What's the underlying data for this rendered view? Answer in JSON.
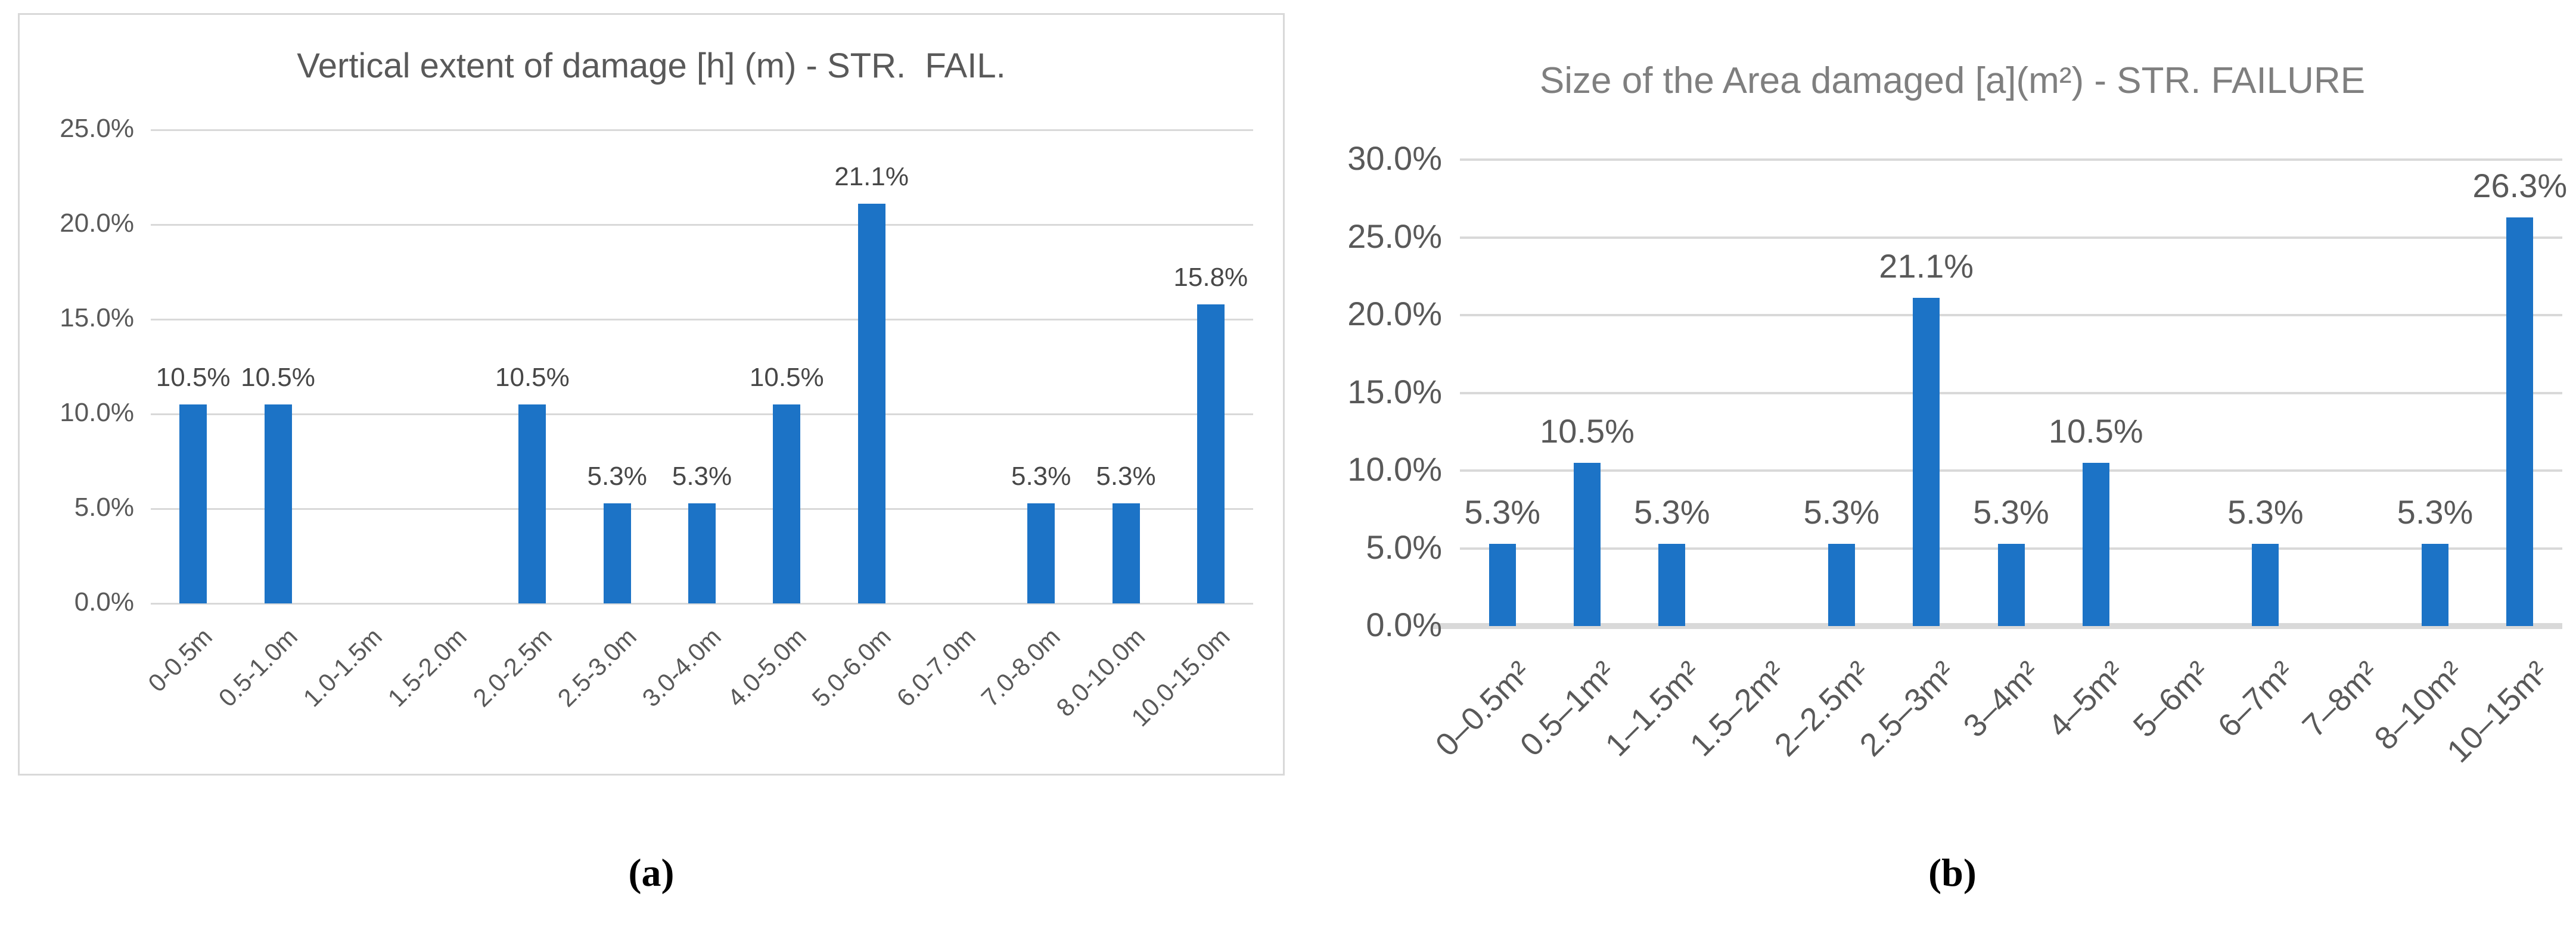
{
  "figure": {
    "captions": {
      "a": "(a)",
      "b": "(b)"
    }
  },
  "chart_data": [
    {
      "id": "chart-a",
      "type": "bar",
      "title": "Vertical extent of damage [h] (m) - STR.  FAIL.",
      "categories": [
        "0-0.5m",
        "0.5-1.0m",
        "1.0-1.5m",
        "1.5-2.0m",
        "2.0-2.5m",
        "2.5-3.0m",
        "3.0-4.0m",
        "4.0-5.0m",
        "5.0-6.0m",
        "6.0-7.0m",
        "7.0-8.0m",
        "8.0-10.0m",
        "10.0-15.0m"
      ],
      "values": [
        10.5,
        10.5,
        0,
        0,
        10.5,
        5.3,
        5.3,
        10.5,
        21.1,
        0,
        5.3,
        5.3,
        15.8
      ],
      "data_labels": [
        "10.5%",
        "10.5%",
        "",
        "",
        "10.5%",
        "5.3%",
        "5.3%",
        "10.5%",
        "21.1%",
        "",
        "5.3%",
        "5.3%",
        "15.8%"
      ],
      "xlabel": "",
      "ylabel": "",
      "ylim": [
        0,
        25
      ],
      "ytick_labels": [
        "0.0%",
        "5.0%",
        "10.0%",
        "15.0%",
        "20.0%",
        "25.0%"
      ],
      "grid": true,
      "legend": "none",
      "colors": {
        "bar": "#1c73c6",
        "grid": "#d9d9d9",
        "axis_text": "#595959",
        "title": "#595959",
        "data_label": "#474747"
      }
    },
    {
      "id": "chart-b",
      "type": "bar",
      "title": "Size of the Area damaged [a](m²) - STR. FAILURE",
      "categories": [
        "0–0.5m²",
        "0.5–1m²",
        "1–1.5m²",
        "1.5–2m²",
        "2–2.5m²",
        "2.5–3m²",
        "3–4m²",
        "4–5m²",
        "5–6m²",
        "6–7m²",
        "7–8m²",
        "8–10m²",
        "10–15m²"
      ],
      "values": [
        5.3,
        10.5,
        5.3,
        0,
        5.3,
        21.1,
        5.3,
        10.5,
        0,
        5.3,
        0,
        5.3,
        26.3
      ],
      "data_labels": [
        "5.3%",
        "10.5%",
        "5.3%",
        "",
        "5.3%",
        "21.1%",
        "5.3%",
        "10.5%",
        "",
        "5.3%",
        "",
        "5.3%",
        "26.3%"
      ],
      "xlabel": "",
      "ylabel": "",
      "ylim": [
        0,
        30
      ],
      "ytick_labels": [
        "0.0%",
        "5.0%",
        "10.0%",
        "15.0%",
        "20.0%",
        "25.0%",
        "30.0%"
      ],
      "grid": true,
      "legend": "none",
      "colors": {
        "bar": "#1c73c6",
        "grid": "#d9d9d9",
        "axis_text": "#595959",
        "title": "#7f7f7f",
        "data_label": "#595959"
      }
    }
  ]
}
